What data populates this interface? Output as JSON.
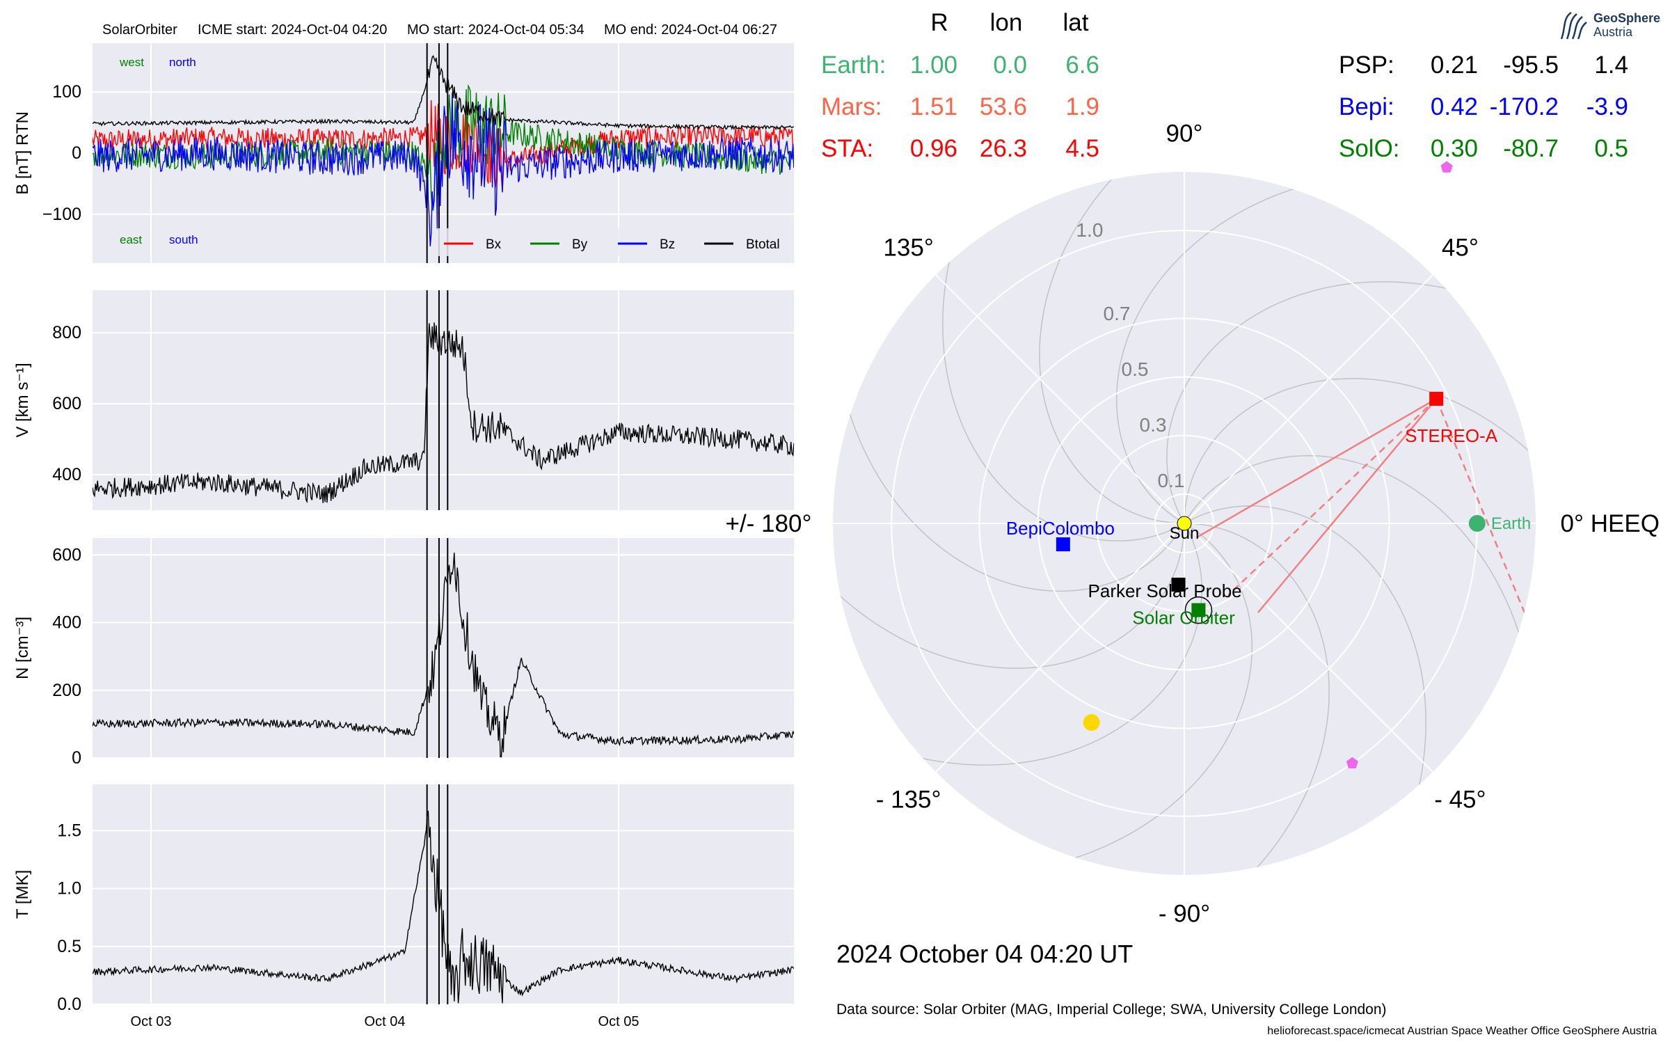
{
  "header": {
    "spacecraft": "SolarOrbiter",
    "icme_start": "ICME start: 2024-Oct-04 04:20",
    "mo_start": "MO start: 2024-Oct-04 05:34",
    "mo_end": "MO end: 2024-Oct-04 06:27"
  },
  "logo": {
    "line1": "GeoSphere",
    "line2": "Austria"
  },
  "positions_table": {
    "columns": [
      "R",
      "lon",
      "lat"
    ],
    "left": [
      {
        "name": "Earth:",
        "R": "1.00",
        "lon": "0.0",
        "lat": "6.6",
        "color": "#3cb371"
      },
      {
        "name": "Mars:",
        "R": "1.51",
        "lon": "53.6",
        "lat": "1.9",
        "color": "#ff6347"
      },
      {
        "name": "STA:",
        "R": "0.96",
        "lon": "26.3",
        "lat": "4.5",
        "color": "#ff0000"
      }
    ],
    "right": [
      {
        "name": "PSP:",
        "R": "0.21",
        "lon": "-95.5",
        "lat": "1.4",
        "color": "#000000"
      },
      {
        "name": "Bepi:",
        "R": "0.42",
        "lon": "-170.2",
        "lat": "-3.9",
        "color": "#0000ff"
      },
      {
        "name": "SolO:",
        "R": "0.30",
        "lon": "-80.7",
        "lat": "0.5",
        "color": "#008000"
      }
    ]
  },
  "chart_data": [
    {
      "type": "line",
      "panel": "magnetic-field",
      "ylabel": "B [nT] RTN",
      "ylim": [
        -180,
        180
      ],
      "yticks": [
        100,
        0,
        -100
      ],
      "ytick_labels": [
        "100",
        "0",
        "−100"
      ],
      "xlim": [
        "2024-10-02 18:00",
        "2024-10-05 18:00"
      ],
      "xticks": [
        "Oct 03",
        "Oct 04",
        "Oct 05"
      ],
      "annotations": {
        "top_left": "west",
        "top_right": "north",
        "bottom_left": "east",
        "bottom_right": "south"
      },
      "annotation_colors": {
        "west": "#008000",
        "north": "#0000ff",
        "east": "#008000",
        "south": "#0000ff"
      },
      "legend": {
        "placement": "lower-right",
        "entries": [
          "Bx",
          "By",
          "Bz",
          "Btotal"
        ]
      },
      "series": [
        {
          "name": "Bx",
          "color": "#ff0000",
          "x": [
            "2024-10-02 18:00",
            "2024-10-03 06:00",
            "2024-10-03 18:00",
            "2024-10-04 03:00",
            "2024-10-04 05:00",
            "2024-10-04 06:00",
            "2024-10-04 09:00",
            "2024-10-04 12:00",
            "2024-10-05 00:00",
            "2024-10-05 12:00",
            "2024-10-05 18:00"
          ],
          "y": [
            20,
            25,
            22,
            25,
            30,
            20,
            25,
            -15,
            25,
            28,
            25
          ]
        },
        {
          "name": "By",
          "color": "#008000",
          "x": [
            "2024-10-02 18:00",
            "2024-10-03 06:00",
            "2024-10-03 18:00",
            "2024-10-04 03:00",
            "2024-10-04 05:00",
            "2024-10-04 06:00",
            "2024-10-04 09:00",
            "2024-10-04 12:00",
            "2024-10-05 00:00",
            "2024-10-05 12:00",
            "2024-10-05 18:00"
          ],
          "y": [
            0,
            -5,
            2,
            0,
            -40,
            30,
            50,
            35,
            5,
            -10,
            -15
          ]
        },
        {
          "name": "Bz",
          "color": "#0000ff",
          "x": [
            "2024-10-02 18:00",
            "2024-10-03 06:00",
            "2024-10-03 18:00",
            "2024-10-04 03:00",
            "2024-10-04 05:00",
            "2024-10-04 06:00",
            "2024-10-04 09:00",
            "2024-10-04 12:00",
            "2024-10-05 00:00",
            "2024-10-05 12:00",
            "2024-10-05 18:00"
          ],
          "y": [
            -5,
            0,
            -10,
            -5,
            -100,
            40,
            10,
            -25,
            -5,
            0,
            -5
          ]
        },
        {
          "name": "Btotal",
          "color": "#000000",
          "x": [
            "2024-10-02 18:00",
            "2024-10-03 06:00",
            "2024-10-03 18:00",
            "2024-10-04 03:00",
            "2024-10-04 05:00",
            "2024-10-04 06:00",
            "2024-10-04 08:00",
            "2024-10-04 12:00",
            "2024-10-05 00:00",
            "2024-10-05 12:00",
            "2024-10-05 18:00"
          ],
          "y": [
            48,
            50,
            52,
            50,
            150,
            120,
            75,
            55,
            45,
            42,
            42
          ]
        }
      ]
    },
    {
      "type": "line",
      "panel": "velocity",
      "ylabel": "V [km s⁻¹]",
      "ylim": [
        300,
        920
      ],
      "yticks": [
        800,
        600,
        400
      ],
      "ytick_labels": [
        "800",
        "600",
        "400"
      ],
      "xlim": [
        "2024-10-02 18:00",
        "2024-10-05 18:00"
      ],
      "series": [
        {
          "name": "V",
          "color": "#000000",
          "x": [
            "2024-10-02 18:00",
            "2024-10-03 06:00",
            "2024-10-03 18:00",
            "2024-10-03 22:00",
            "2024-10-04 04:00",
            "2024-10-04 04:30",
            "2024-10-04 08:00",
            "2024-10-04 09:00",
            "2024-10-04 12:00",
            "2024-10-04 16:00",
            "2024-10-05 00:00",
            "2024-10-05 12:00",
            "2024-10-05 18:00"
          ],
          "y": [
            360,
            380,
            345,
            420,
            440,
            790,
            760,
            540,
            530,
            440,
            520,
            500,
            480
          ]
        }
      ]
    },
    {
      "type": "line",
      "panel": "density",
      "ylabel": "N [cm⁻³]",
      "ylim": [
        0,
        650
      ],
      "yticks": [
        600,
        400,
        200,
        0
      ],
      "ytick_labels": [
        "600",
        "400",
        "200",
        "0"
      ],
      "xlim": [
        "2024-10-02 18:00",
        "2024-10-05 18:00"
      ],
      "series": [
        {
          "name": "N",
          "color": "#000000",
          "x": [
            "2024-10-02 18:00",
            "2024-10-03 06:00",
            "2024-10-03 18:00",
            "2024-10-04 03:00",
            "2024-10-04 05:00",
            "2024-10-04 07:00",
            "2024-10-04 08:00",
            "2024-10-04 10:00",
            "2024-10-04 12:00",
            "2024-10-04 14:00",
            "2024-10-04 18:00",
            "2024-10-05 00:00",
            "2024-10-05 12:00",
            "2024-10-05 18:00"
          ],
          "y": [
            100,
            105,
            100,
            75,
            260,
            620,
            420,
            160,
            60,
            290,
            70,
            50,
            55,
            70
          ]
        }
      ]
    },
    {
      "type": "line",
      "panel": "temperature",
      "ylabel": "T [MK]",
      "ylim": [
        0,
        1.9
      ],
      "yticks": [
        1.5,
        1.0,
        0.5,
        0.0
      ],
      "ytick_labels": [
        "1.5",
        "1.0",
        "0.5",
        "0.0"
      ],
      "xlim": [
        "2024-10-02 18:00",
        "2024-10-05 18:00"
      ],
      "series": [
        {
          "name": "T",
          "color": "#000000",
          "x": [
            "2024-10-02 18:00",
            "2024-10-03 06:00",
            "2024-10-03 18:00",
            "2024-10-04 02:00",
            "2024-10-04 04:30",
            "2024-10-04 05:00",
            "2024-10-04 07:00",
            "2024-10-04 08:00",
            "2024-10-04 11:00",
            "2024-10-04 14:00",
            "2024-10-04 18:00",
            "2024-10-05 00:00",
            "2024-10-05 12:00",
            "2024-10-05 18:00"
          ],
          "y": [
            0.28,
            0.32,
            0.22,
            0.45,
            1.6,
            1.2,
            0.05,
            0.4,
            0.3,
            0.1,
            0.3,
            0.38,
            0.22,
            0.3
          ]
        }
      ]
    },
    {
      "type": "scatter",
      "panel": "polar-orbit-plot",
      "frame_label": "0° HEEQ",
      "angle_ticks": [
        "0° HEEQ",
        "45°",
        "90°",
        "135°",
        "+/- 180°",
        "- 135°",
        "- 90°",
        "- 45°"
      ],
      "radial_ticks": [
        "0.1",
        "0.3",
        "0.5",
        "0.7",
        "1.0"
      ],
      "rmax": 1.2,
      "points": [
        {
          "label": "Sun",
          "r": 0.0,
          "lon": 0,
          "color": "#ffff00",
          "marker": "circle"
        },
        {
          "label": "Earth",
          "r": 1.0,
          "lon": 0.0,
          "color": "#3cb371",
          "marker": "circle"
        },
        {
          "label": "STEREO-A",
          "r": 0.96,
          "lon": 26.3,
          "color": "#ff0000",
          "marker": "square"
        },
        {
          "label": "BepiColombo",
          "r": 0.42,
          "lon": -170.2,
          "color": "#0000ff",
          "marker": "square"
        },
        {
          "label": "Parker Solar Probe",
          "r": 0.21,
          "lon": -95.5,
          "color": "#000000",
          "marker": "square"
        },
        {
          "label": "Solar Orbiter",
          "r": 0.3,
          "lon": -80.7,
          "color": "#008000",
          "marker": "square"
        },
        {
          "label": "",
          "r": 1.51,
          "lon": 53.6,
          "color": "#ee66ee",
          "marker": "pentagon"
        },
        {
          "label": "",
          "r": 1.0,
          "lon": -55,
          "color": "#ee66ee",
          "marker": "pentagon"
        },
        {
          "label": "",
          "r": 0.75,
          "lon": -115,
          "color": "#ffd700",
          "marker": "circle"
        }
      ]
    }
  ],
  "timestamp": "2024 October 04  04:20 UT",
  "data_source": "Data source: Solar Orbiter (MAG, Imperial College; SWA, University College London)",
  "footer": "helioforecast.space/icmecat   Austrian Space Weather Office   GeoSphere Austria"
}
